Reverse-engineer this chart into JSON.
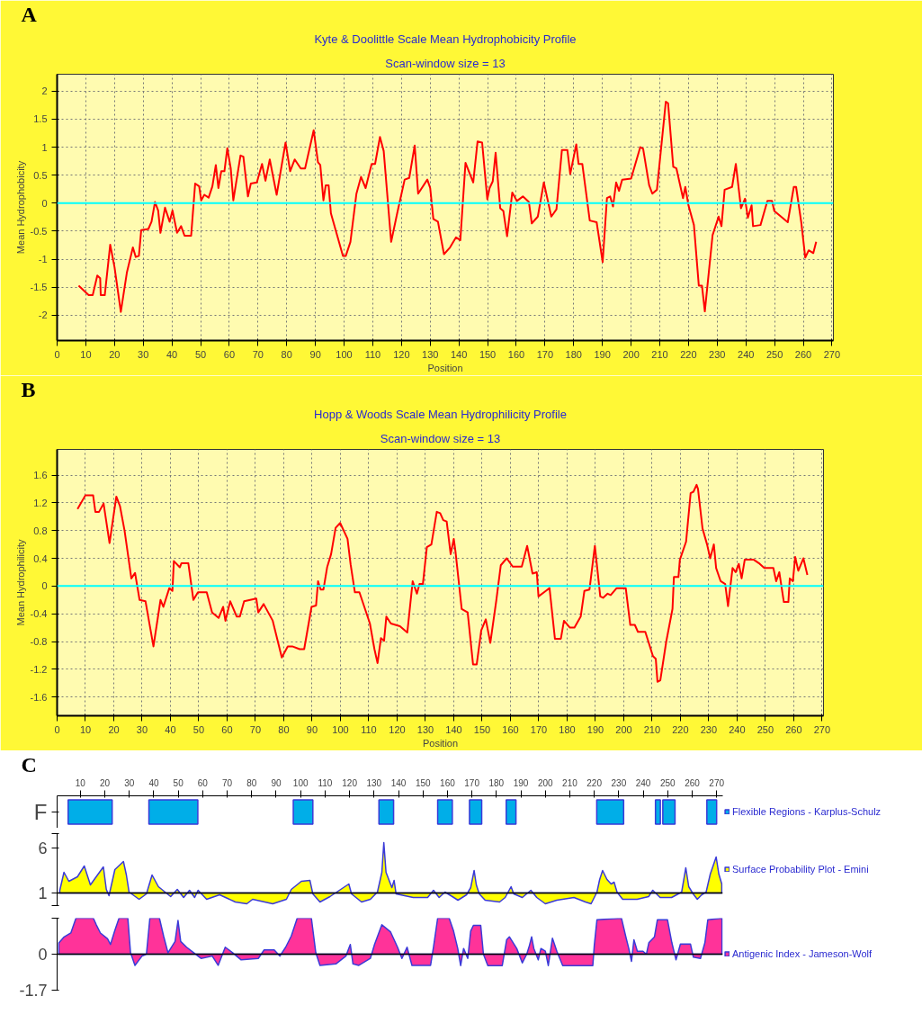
{
  "chart_data": [
    {
      "type": "line",
      "title": "Kyte & Doolittle Scale Mean Hydrophobicity Profile",
      "subtitle": "Scan-window size = 13",
      "xlabel": "Position",
      "ylabel": "Mean Hydrophobicity",
      "annotations": [
        "A"
      ],
      "grid": true,
      "xlim": [
        0,
        270.5
      ],
      "xticks": [
        0,
        10,
        20,
        30,
        40,
        50,
        60,
        70,
        80,
        90,
        100,
        110,
        120,
        130,
        140,
        150,
        160,
        170,
        180,
        190,
        200,
        210,
        220,
        230,
        240,
        250,
        260,
        270
      ],
      "ylim": [
        -2.45,
        2.3
      ],
      "yticks": [
        -2,
        -1.5,
        -1,
        -0.5,
        0,
        0.5,
        1,
        1.5,
        2
      ],
      "ref_lines": [
        {
          "axis": "y",
          "value": 0,
          "color": "#00ffff"
        }
      ],
      "x": [
        7.5,
        11,
        12.4,
        14,
        15,
        15.2,
        16.6,
        18.5,
        20,
        22.2,
        24.3,
        26.4,
        27.4,
        28.5,
        29.3,
        31.8,
        32.9,
        34.1,
        35.2,
        36,
        37.6,
        39.2,
        40.2,
        41.8,
        43.2,
        44.4,
        46.7,
        48.1,
        49.5,
        50.2,
        51.3,
        52.8,
        54.1,
        55.3,
        56.2,
        57.2,
        58.3,
        59.3,
        60.5,
        61.4,
        63.9,
        64.9,
        66.5,
        67.5,
        69.6,
        71.4,
        72.6,
        74.1,
        76.5,
        79.6,
        81.2,
        82.8,
        84.9,
        86.4,
        89.4,
        90.9,
        91.7,
        92.8,
        93.6,
        94.6,
        95.4,
        99.6,
        100.6,
        102.2,
        104.3,
        105.9,
        107.5,
        109.6,
        110.8,
        112.5,
        113.8,
        116.4,
        118.5,
        121.1,
        122.7,
        124.6,
        125.8,
        129,
        130,
        131.1,
        132.7,
        134.8,
        136.9,
        139,
        140.5,
        142.3,
        145,
        146.5,
        148.1,
        149.9,
        150.7,
        151.8,
        152.8,
        154.4,
        155.5,
        156.8,
        158.6,
        160.2,
        162.3,
        164.4,
        165.4,
        167.5,
        169.6,
        172.2,
        174,
        175.9,
        177.8,
        178.8,
        180.9,
        181.7,
        183,
        185.6,
        188,
        190.1,
        191.6,
        192.7,
        193.7,
        194.8,
        195.8,
        196.9,
        200,
        203.2,
        204.2,
        206.3,
        207.4,
        209,
        212.1,
        212.9,
        214.7,
        215.8,
        218.1,
        218.9,
        220,
        221.9,
        223.6,
        224.7,
        225.7,
        228.4,
        230.5,
        231.5,
        232.6,
        235.2,
        236.5,
        238.3,
        239.7,
        240.7,
        242,
        242.5,
        245.1,
        247.5,
        249.1,
        249.9,
        254.6,
        256.7,
        257.5,
        259.3,
        260.7,
        261.9,
        263.5,
        264.5
      ],
      "series": [
        {
          "color": "#ff0000",
          "values": [
            -1.47,
            -1.64,
            -1.64,
            -1.29,
            -1.34,
            -1.64,
            -1.64,
            -0.74,
            -1.14,
            -1.94,
            -1.24,
            -0.79,
            -0.96,
            -0.94,
            -0.48,
            -0.46,
            -0.33,
            0.02,
            -0.13,
            -0.53,
            -0.08,
            -0.33,
            -0.13,
            -0.53,
            -0.41,
            -0.58,
            -0.58,
            0.35,
            0.3,
            0.05,
            0.15,
            0.1,
            0.3,
            0.68,
            0.27,
            0.57,
            0.57,
            0.98,
            0.62,
            0.05,
            0.85,
            0.83,
            0.12,
            0.35,
            0.37,
            0.7,
            0.4,
            0.78,
            0.15,
            1.08,
            0.57,
            0.78,
            0.62,
            0.62,
            1.3,
            0.73,
            0.68,
            0.05,
            0.32,
            0.32,
            -0.18,
            -0.94,
            -0.94,
            -0.69,
            0.17,
            0.47,
            0.27,
            0.7,
            0.7,
            1.18,
            0.93,
            -0.69,
            -0.18,
            0.42,
            0.45,
            1.03,
            0.17,
            0.42,
            0.27,
            -0.28,
            -0.33,
            -0.91,
            -0.79,
            -0.61,
            -0.66,
            0.72,
            0.37,
            1.1,
            1.08,
            0.07,
            0.27,
            0.39,
            0.9,
            -0.09,
            -0.14,
            -0.59,
            0.19,
            0.04,
            0.12,
            0.02,
            -0.36,
            -0.24,
            0.37,
            -0.24,
            -0.11,
            0.95,
            0.95,
            0.52,
            1.05,
            0.7,
            0.7,
            -0.31,
            -0.34,
            -1.05,
            0.09,
            0.12,
            -0.06,
            0.37,
            0.22,
            0.42,
            0.44,
            1.0,
            0.97,
            0.32,
            0.17,
            0.24,
            1.81,
            1.78,
            0.65,
            0.62,
            0.09,
            0.29,
            -0.04,
            -0.39,
            -1.47,
            -1.47,
            -1.93,
            -0.57,
            -0.24,
            -0.41,
            0.24,
            0.29,
            0.7,
            -0.09,
            0.08,
            -0.26,
            -0.04,
            -0.41,
            -0.39,
            0.04,
            0.04,
            -0.14,
            -0.34,
            0.29,
            0.29,
            -0.34,
            -0.97,
            -0.84,
            -0.89,
            -0.69
          ]
        }
      ]
    },
    {
      "type": "line",
      "title": "Hopp & Woods Scale Mean Hydrophilicity Profile",
      "subtitle": "Scan-window size = 13",
      "xlabel": "Position",
      "ylabel": "Mean Hydrophilicity",
      "annotations": [
        "B"
      ],
      "grid": true,
      "xlim": [
        0,
        270.5
      ],
      "xticks": [
        0,
        10,
        20,
        30,
        40,
        50,
        60,
        70,
        80,
        90,
        100,
        110,
        120,
        130,
        140,
        150,
        160,
        170,
        180,
        190,
        200,
        210,
        220,
        230,
        240,
        250,
        260,
        270
      ],
      "ylim": [
        -1.87,
        1.97
      ],
      "yticks": [
        -1.6,
        -1.2,
        -0.8,
        -0.4,
        0,
        0.4,
        0.8,
        1.2,
        1.6
      ],
      "ref_lines": [
        {
          "axis": "y",
          "value": 0,
          "color": "#00ffff"
        }
      ],
      "x": [
        7.2,
        10,
        12.7,
        13.5,
        14.8,
        16.4,
        18.5,
        20.9,
        22.2,
        23.8,
        26.2,
        27.5,
        29.1,
        31.2,
        34,
        36.5,
        37.5,
        39.6,
        40.7,
        41.2,
        43.3,
        43.9,
        46.3,
        48.1,
        49.7,
        52.8,
        54.7,
        57,
        58.6,
        59.4,
        61.1,
        63.4,
        64.5,
        66,
        70.3,
        71,
        72.9,
        76.1,
        79.3,
        81.4,
        83,
        85.6,
        87.2,
        89.8,
        91.4,
        92.1,
        93,
        94,
        95.3,
        96.7,
        98.3,
        99.9,
        102.5,
        103.6,
        105.1,
        106.7,
        110.4,
        112,
        113.1,
        114.3,
        115.4,
        116.2,
        117.8,
        121,
        123.6,
        125.5,
        127,
        127.9,
        129.1,
        130.5,
        132.1,
        134,
        135.2,
        136.3,
        137.5,
        138.9,
        140,
        140.6,
        142.8,
        144.9,
        146.8,
        148.1,
        149.7,
        151.3,
        152.9,
        155,
        156.6,
        158.7,
        160.8,
        164,
        165.9,
        167.8,
        169.3,
        169.9,
        172.5,
        173.8,
        175.7,
        177.8,
        178.9,
        181,
        182.6,
        184.8,
        186.1,
        187.9,
        189.8,
        191.7,
        192.7,
        194.3,
        195.4,
        197.5,
        200.7,
        202.3,
        203.9,
        205,
        207.6,
        210.3,
        211.3,
        211.9,
        212.9,
        215,
        217.2,
        217.7,
        219.3,
        219.8,
        222,
        223.6,
        224.6,
        225.7,
        226.2,
        227.8,
        229.4,
        230.5,
        231.8,
        232.6,
        234.2,
        235.8,
        236.8,
        238.4,
        239.5,
        240.6,
        241.6,
        242.7,
        245.9,
        248,
        249.6,
        252.8,
        253.8,
        254.9,
        256.5,
        258.1,
        258.6,
        259.7,
        260.5,
        261.6,
        263.4,
        264.8
      ],
      "series": [
        {
          "color": "#ff0000",
          "values": [
            1.11,
            1.31,
            1.31,
            1.07,
            1.07,
            1.19,
            0.62,
            1.29,
            1.15,
            0.8,
            0.11,
            0.19,
            -0.2,
            -0.22,
            -0.87,
            -0.2,
            -0.3,
            -0.03,
            -0.07,
            0.36,
            0.27,
            0.33,
            0.33,
            -0.2,
            -0.09,
            -0.09,
            -0.38,
            -0.46,
            -0.3,
            -0.5,
            -0.22,
            -0.44,
            -0.44,
            -0.22,
            -0.18,
            -0.38,
            -0.26,
            -0.5,
            -1.03,
            -0.87,
            -0.87,
            -0.91,
            -0.91,
            -0.3,
            -0.28,
            0.07,
            -0.05,
            -0.05,
            0.27,
            0.46,
            0.84,
            0.91,
            0.68,
            0.31,
            -0.09,
            -0.09,
            -0.54,
            -0.91,
            -1.11,
            -0.75,
            -0.79,
            -0.44,
            -0.54,
            -0.58,
            -0.67,
            0.07,
            -0.11,
            0.03,
            0.03,
            0.56,
            0.6,
            1.07,
            1.05,
            0.95,
            0.93,
            0.46,
            0.68,
            0.5,
            -0.33,
            -0.38,
            -1.13,
            -1.13,
            -0.64,
            -0.48,
            -0.82,
            -0.21,
            0.3,
            0.4,
            0.28,
            0.28,
            0.58,
            0.18,
            0.2,
            -0.15,
            -0.07,
            -0.03,
            -0.76,
            -0.76,
            -0.5,
            -0.6,
            -0.6,
            -0.44,
            -0.07,
            -0.05,
            0.58,
            -0.15,
            -0.17,
            -0.11,
            -0.13,
            -0.03,
            -0.03,
            -0.56,
            -0.56,
            -0.66,
            -0.66,
            -1.01,
            -1.05,
            -1.38,
            -1.36,
            -0.8,
            -0.33,
            0.13,
            0.13,
            0.38,
            0.64,
            1.34,
            1.36,
            1.46,
            1.4,
            0.83,
            0.6,
            0.4,
            0.6,
            0.26,
            0.07,
            0.03,
            -0.29,
            0.26,
            0.2,
            0.32,
            0.11,
            0.38,
            0.38,
            0.32,
            0.26,
            0.26,
            0.07,
            0.2,
            -0.23,
            -0.23,
            0.11,
            0.07,
            0.42,
            0.22,
            0.4,
            0.16
          ]
        }
      ]
    },
    {
      "type": "bar",
      "orientation": "horizontal",
      "annotations": [
        "C"
      ],
      "categories": [
        "F"
      ],
      "legend": "right",
      "xlim": [
        0.5,
        272.5
      ],
      "xticks": [
        10,
        20,
        30,
        40,
        50,
        60,
        70,
        80,
        90,
        100,
        110,
        120,
        130,
        140,
        150,
        160,
        170,
        180,
        190,
        200,
        210,
        220,
        230,
        240,
        250,
        260,
        270
      ],
      "series": [
        {
          "name": "Flexible Regions - Karplus-Schulz",
          "color": "#00aee8",
          "base": [
            5
          ],
          "values": [
            18
          ]
        },
        {
          "color": "#00aee8",
          "base": [
            38
          ],
          "values": [
            20
          ]
        },
        {
          "color": "#00aee8",
          "base": [
            97
          ],
          "values": [
            8
          ]
        },
        {
          "color": "#00aee8",
          "base": [
            132
          ],
          "values": [
            6
          ]
        },
        {
          "color": "#00aee8",
          "base": [
            156
          ],
          "values": [
            6
          ]
        },
        {
          "color": "#00aee8",
          "base": [
            169
          ],
          "values": [
            5
          ]
        },
        {
          "color": "#00aee8",
          "base": [
            184
          ],
          "values": [
            4
          ]
        },
        {
          "color": "#00aee8",
          "base": [
            221
          ],
          "values": [
            11
          ]
        },
        {
          "color": "#00aee8",
          "base": [
            245
          ],
          "values": [
            2
          ]
        },
        {
          "color": "#00aee8",
          "base": [
            248
          ],
          "values": [
            5
          ]
        },
        {
          "color": "#00aee8",
          "base": [
            266
          ],
          "values": [
            4
          ]
        }
      ]
    },
    {
      "type": "area",
      "legend": "right",
      "tick_labels": "y",
      "xlim": [
        0.5,
        272.5
      ],
      "ylim": [
        -0.4,
        7.6
      ],
      "yticks": [
        {
          "value": -0.4,
          "label": null
        },
        1,
        6,
        {
          "value": 7.6,
          "label": null
        }
      ],
      "ref_lines": [
        {
          "axis": "y",
          "value": 1,
          "color": "#000000"
        }
      ],
      "x": [
        1.6,
        3.3,
        5.3,
        8.8,
        11.6,
        14.1,
        17,
        19.4,
        20.6,
        21.7,
        24.1,
        27.6,
        28.8,
        29.9,
        34,
        37,
        39.3,
        41.9,
        46.9,
        49.6,
        52.2,
        54.6,
        56.7,
        58.1,
        61.6,
        66.9,
        73.3,
        78,
        80.4,
        88.6,
        94.2,
        96.2,
        100.3,
        103.8,
        105,
        107.9,
        112,
        119.7,
        120.8,
        124.9,
        128.5,
        131.4,
        133.2,
        134,
        134.9,
        137.3,
        138.2,
        139,
        146,
        151.9,
        154.3,
        156.6,
        159,
        162,
        164.3,
        167.8,
        169.5,
        170.9,
        171.8,
        173,
        175.4,
        181.3,
        183.6,
        186,
        187.1,
        190.6,
        194.1,
        196.5,
        200,
        204.7,
        211.7,
        216.4,
        218.7,
        221.1,
        222.2,
        223.4,
        225.2,
        226.9,
        228.1,
        229.3,
        231.6,
        237.5,
        242.2,
        243.9,
        246.9,
        251.6,
        255.7,
        257.4,
        258.6,
        260.4,
        262.1,
        263.9,
        265.7,
        267.4,
        269.8,
        270.9,
        272.1
      ],
      "series": [
        {
          "name": "Surface Probability Plot - Emini",
          "color": "#ffff00",
          "values": [
            1.3,
            3.3,
            2.3,
            2.8,
            4.0,
            1.9,
            3.0,
            3.9,
            1.4,
            0.7,
            3.6,
            4.5,
            3.0,
            1.1,
            0.3,
            0.9,
            3.0,
            1.7,
            0.6,
            1.4,
            0.5,
            1.3,
            0.5,
            1.3,
            0.3,
            0.8,
            0.0,
            -0.2,
            0.3,
            -0.2,
            0.3,
            1.4,
            2.3,
            2.4,
            0.9,
            0.0,
            0.6,
            2.0,
            0.9,
            0.0,
            0.3,
            1.1,
            3.3,
            6.6,
            3.3,
            1.6,
            2.4,
            0.9,
            0.5,
            0.5,
            1.3,
            0.5,
            1.1,
            0.6,
            0.2,
            0.8,
            1.6,
            3.5,
            1.9,
            0.9,
            0.2,
            0.0,
            0.5,
            1.7,
            0.9,
            0.5,
            1.3,
            0.5,
            -0.2,
            0.2,
            0.5,
            0.0,
            -0.2,
            1.1,
            2.5,
            3.5,
            2.5,
            2.0,
            2.2,
            1.1,
            0.3,
            0.3,
            0.6,
            1.3,
            0.5,
            0.5,
            1.1,
            3.8,
            1.7,
            0.9,
            0.3,
            0.8,
            1.1,
            3.1,
            5.0,
            3.1,
            2.0
          ]
        }
      ]
    },
    {
      "type": "area",
      "legend": "right",
      "tick_labels": "y",
      "xlim": [
        0.5,
        272.5
      ],
      "ylim": [
        -1.7,
        1.7
      ],
      "yticks": [
        -1.7,
        0,
        {
          "value": 1.7,
          "label": null
        }
      ],
      "ref_lines": [
        {
          "axis": "y",
          "value": 0,
          "color": "#000000"
        }
      ],
      "x": [
        1.2,
        3.2,
        6.1,
        8.2,
        15.3,
        16.5,
        18.2,
        21.1,
        22.3,
        24.1,
        25.8,
        29.4,
        30.5,
        32.3,
        35.2,
        37,
        38.4,
        42.3,
        44,
        45.8,
        48.7,
        49.9,
        51,
        53.4,
        56.3,
        59.3,
        63.9,
        66.3,
        69.2,
        72.2,
        75.7,
        82.7,
        85.1,
        89.2,
        91.5,
        93.9,
        96.2,
        98.6,
        104.4,
        106.2,
        107.9,
        114.4,
        118.5,
        120.3,
        121.4,
        123.8,
        128.5,
        130.2,
        133.2,
        136.7,
        139.6,
        141.4,
        143.5,
        145.5,
        153.1,
        154.3,
        156,
        160.7,
        162.5,
        164.2,
        165.4,
        166.6,
        168.3,
        169.5,
        170.6,
        173.6,
        174.7,
        176.5,
        182.4,
        184.2,
        185.3,
        188.3,
        190.6,
        192.4,
        193.5,
        194.4,
        195.3,
        197.1,
        198.2,
        200,
        201.2,
        202.9,
        204.7,
        207.1,
        219.4,
        220,
        221.1,
        231.1,
        232.9,
        234.1,
        235.2,
        236.2,
        237.6,
        239.9,
        241.3,
        242.3,
        244.6,
        245.8,
        249.9,
        251.7,
        253.4,
        255.2,
        259.3,
        260.5,
        263.4,
        265.2,
        266.4,
        272.2
      ],
      "series": [
        {
          "name": "Antigenic Index - Jameson-Wolf",
          "color": "#ff3399",
          "values": [
            0.53,
            0.8,
            1.0,
            1.7,
            1.7,
            1.39,
            1.0,
            0.73,
            0.46,
            1.13,
            1.7,
            1.7,
            0.07,
            -0.53,
            -0.09,
            0,
            1.7,
            1.7,
            0.86,
            0.07,
            0.6,
            1.59,
            0.6,
            0.33,
            0.07,
            -0.2,
            -0.09,
            -0.53,
            0.33,
            0.07,
            -0.27,
            -0.2,
            0.2,
            0.2,
            -0.09,
            0.33,
            0.86,
            1.7,
            1.7,
            0.07,
            -0.53,
            -0.46,
            -0.09,
            0.46,
            -0.46,
            -0.53,
            -0.2,
            0.46,
            1.39,
            1.06,
            0.33,
            -0.2,
            0.33,
            -0.53,
            -0.53,
            0.33,
            1.7,
            1.7,
            1.09,
            0.27,
            -0.54,
            0.27,
            -0.2,
            1.09,
            1.36,
            1.36,
            0,
            -0.54,
            -0.54,
            0.68,
            0.82,
            0.27,
            -0.41,
            0,
            0.41,
            0.82,
            0.27,
            -0.27,
            0.27,
            0.14,
            -0.54,
            0.75,
            0.14,
            -0.54,
            -0.54,
            0.41,
            1.63,
            1.7,
            0.82,
            0.27,
            -0.34,
            0.68,
            0.14,
            0.14,
            0,
            0.54,
            0.82,
            1.63,
            1.63,
            0.54,
            -0.27,
            0.48,
            0.48,
            -0.14,
            -0.2,
            0.54,
            1.63,
            1.7
          ]
        }
      ]
    }
  ]
}
